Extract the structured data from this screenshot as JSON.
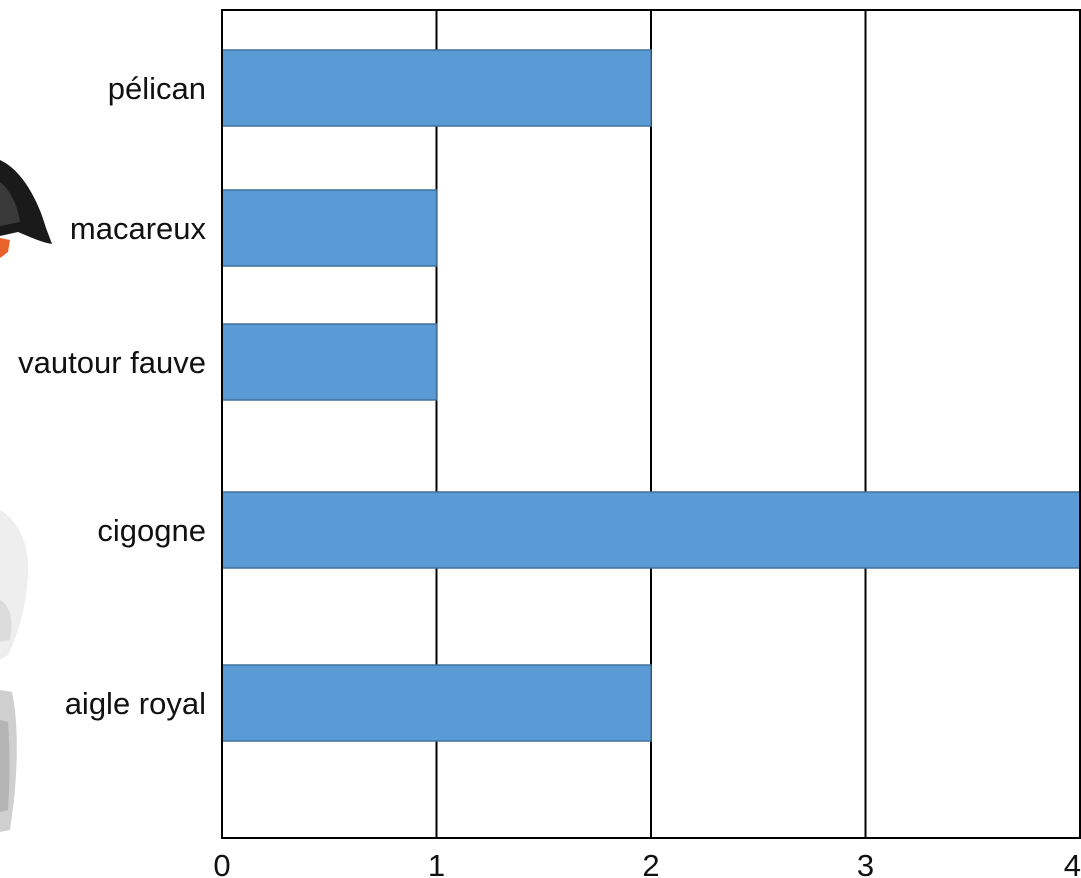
{
  "chart_data": {
    "type": "bar",
    "orientation": "horizontal",
    "categories": [
      "pélican",
      "macareux",
      "vautour fauve",
      "cigogne",
      "aigle royal"
    ],
    "values": [
      2,
      1,
      1,
      4,
      2
    ],
    "xlim": [
      0,
      4
    ],
    "x_ticks": [
      "0",
      "1",
      "2",
      "3",
      "4"
    ],
    "grid": "vertical",
    "title": "",
    "xlabel": "",
    "ylabel": "",
    "bar_color": "#5b9bd5",
    "bar_edge_color": "#41719c"
  },
  "decorations": {
    "bird_illustrations": [
      "puffin-image",
      "stork-image",
      "eagle-image"
    ]
  }
}
